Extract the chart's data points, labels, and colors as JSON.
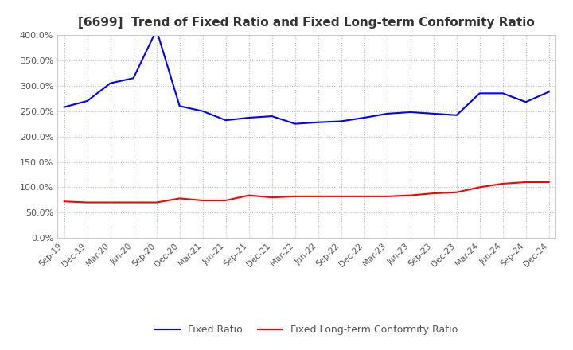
{
  "title": "[6699]  Trend of Fixed Ratio and Fixed Long-term Conformity Ratio",
  "x_labels": [
    "Sep-19",
    "Dec-19",
    "Mar-20",
    "Jun-20",
    "Sep-20",
    "Dec-20",
    "Mar-21",
    "Jun-21",
    "Sep-21",
    "Dec-21",
    "Mar-22",
    "Jun-22",
    "Sep-22",
    "Dec-22",
    "Mar-23",
    "Jun-23",
    "Sep-23",
    "Dec-23",
    "Mar-24",
    "Jun-24",
    "Sep-24",
    "Dec-24"
  ],
  "fixed_ratio": [
    258,
    270,
    305,
    315,
    410,
    260,
    250,
    232,
    237,
    240,
    225,
    228,
    230,
    237,
    245,
    248,
    245,
    242,
    285,
    285,
    268,
    288
  ],
  "fixed_lt_ratio": [
    72,
    70,
    70,
    70,
    70,
    78,
    74,
    74,
    84,
    80,
    82,
    82,
    82,
    82,
    82,
    84,
    88,
    90,
    100,
    107,
    110,
    110
  ],
  "fixed_ratio_color": "#0000FF",
  "fixed_lt_ratio_color": "#FF0000",
  "ylim": [
    0,
    400
  ],
  "ytick_interval": 50,
  "background_color": "#FFFFFF",
  "grid_color": "#BBBBBB",
  "legend_labels": [
    "Fixed Ratio",
    "Fixed Long-term Conformity Ratio"
  ]
}
